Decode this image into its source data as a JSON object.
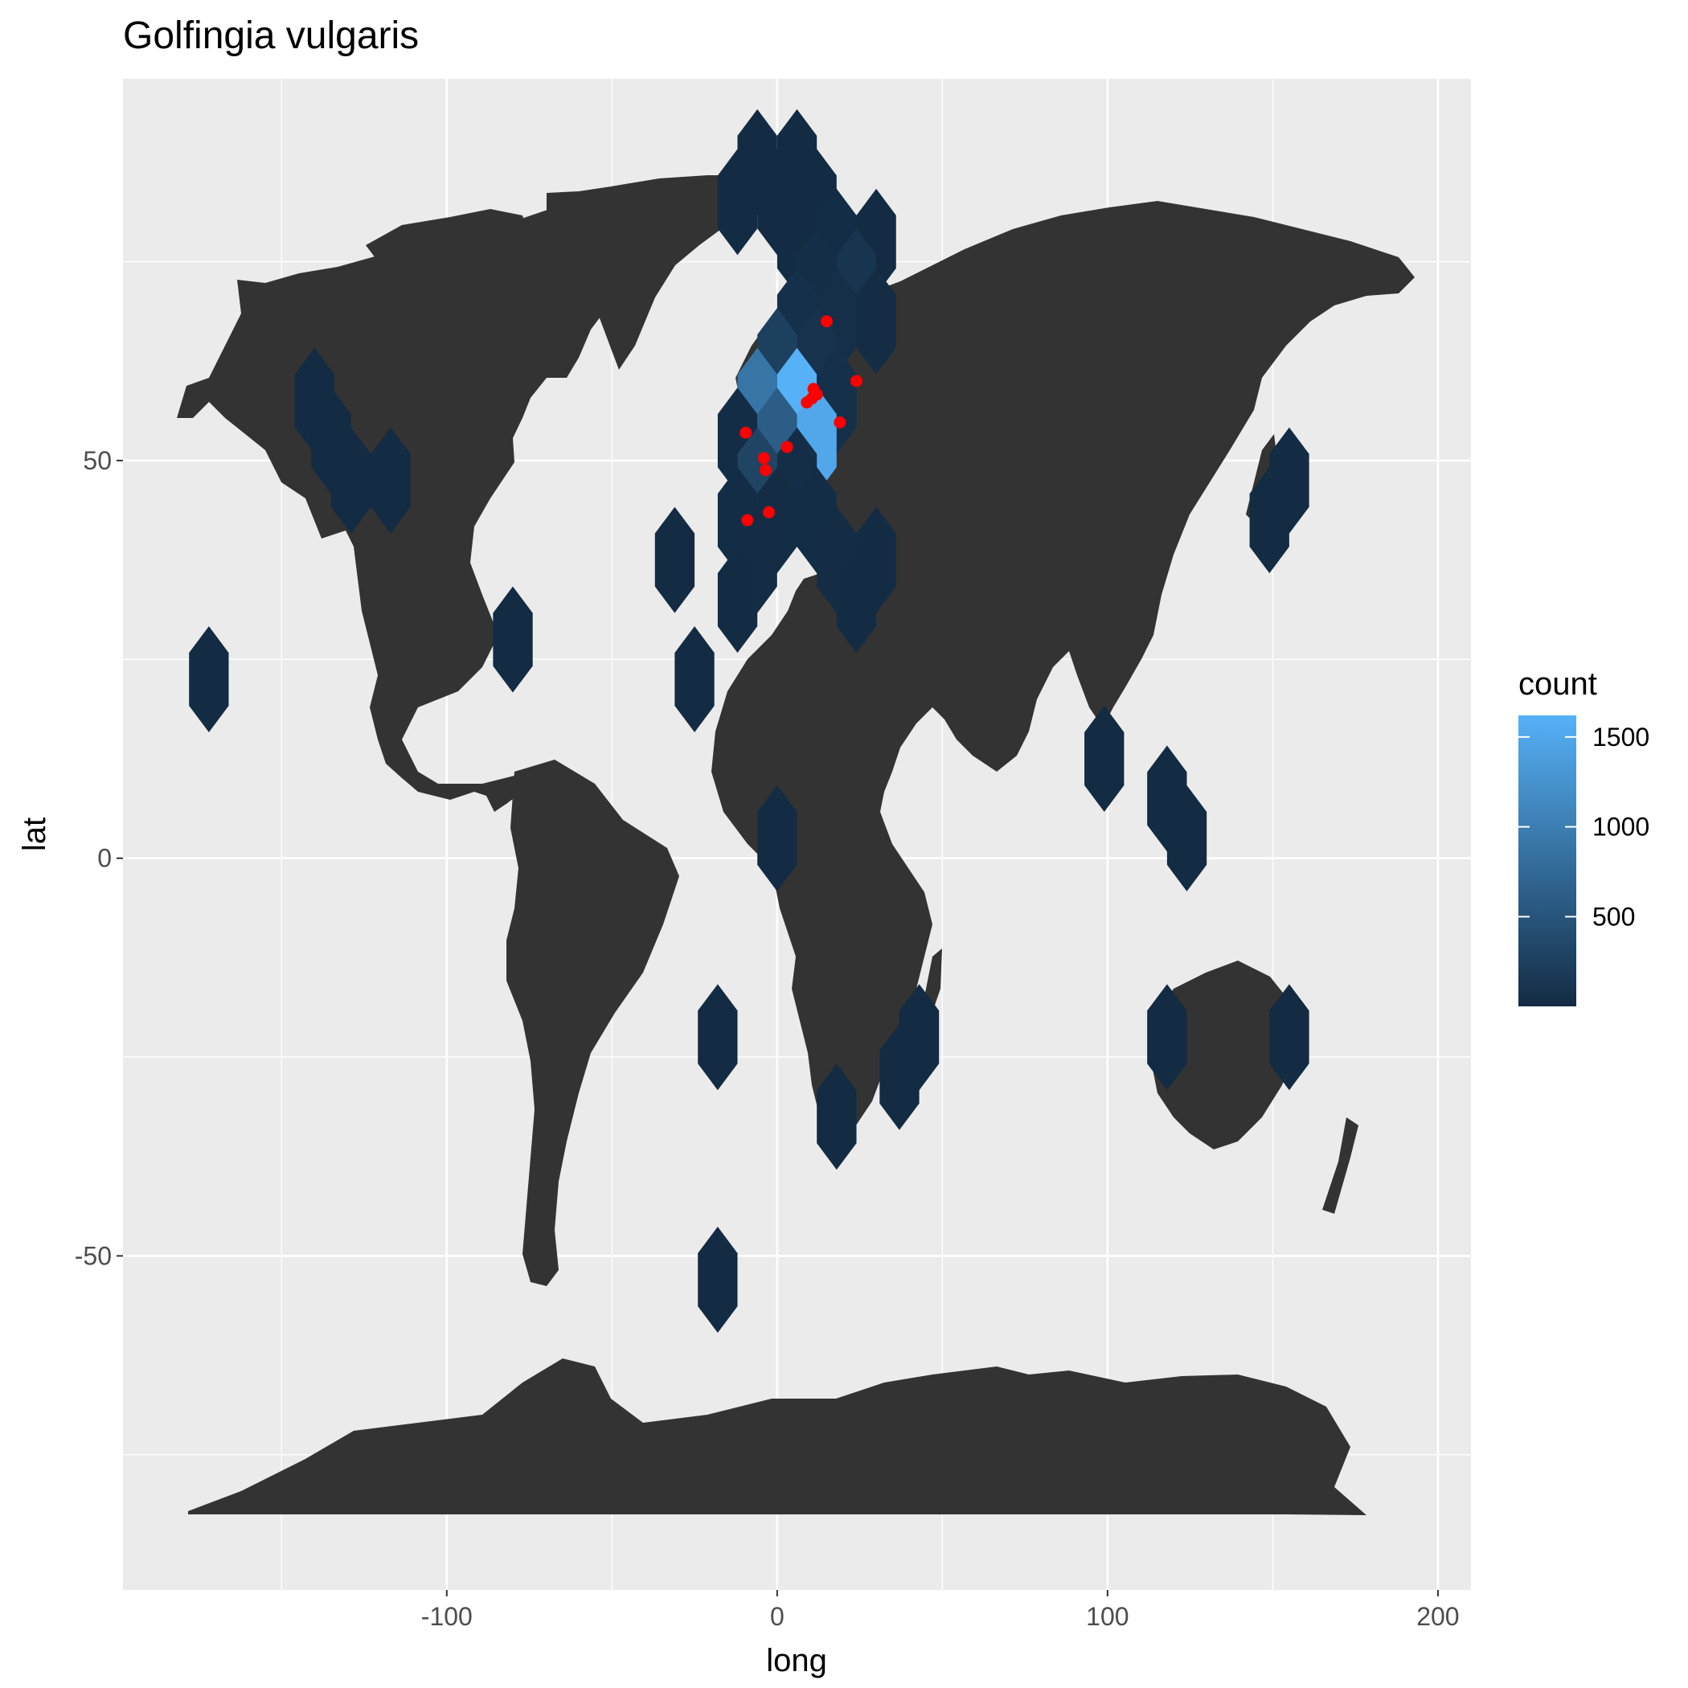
{
  "chart_data": {
    "type": "hexbin",
    "title": "Golfingia vulgaris",
    "xlabel": "long",
    "ylabel": "lat",
    "xlim": [
      -198,
      210
    ],
    "ylim": [
      -92,
      98
    ],
    "x_ticks": [
      -100,
      0,
      100,
      200
    ],
    "x_tick_labels": [
      "-100",
      "0",
      "100",
      "200"
    ],
    "y_ticks": [
      -50,
      0,
      50
    ],
    "y_tick_labels": [
      "-50",
      "0",
      "50"
    ],
    "grid": true,
    "legend": {
      "title": "count",
      "position": "right",
      "breaks": [
        500,
        1000,
        1500
      ],
      "break_labels": [
        "500",
        "1000",
        "1500"
      ],
      "range": [
        1,
        1620
      ],
      "low_color": "#132b43",
      "high_color": "#56b1f7"
    },
    "colors": {
      "panel_background": "#ebebeb",
      "gridline": "#ffffff",
      "land": "#333333",
      "occurrence_point": "#ff0000"
    },
    "hex_bins": [
      {
        "x": -6,
        "y": 87.5,
        "count": 5
      },
      {
        "x": 6,
        "y": 87.5,
        "count": 5
      },
      {
        "x": -12,
        "y": 82.5,
        "count": 5
      },
      {
        "x": 0,
        "y": 82.5,
        "count": 5
      },
      {
        "x": 12,
        "y": 82.5,
        "count": 5
      },
      {
        "x": 6,
        "y": 77.5,
        "count": 10
      },
      {
        "x": 18,
        "y": 77.5,
        "count": 30
      },
      {
        "x": 30,
        "y": 77.5,
        "count": 5
      },
      {
        "x": 12,
        "y": 72.5,
        "count": 40
      },
      {
        "x": 24,
        "y": 72.5,
        "count": 120
      },
      {
        "x": 6,
        "y": 67.5,
        "count": 60
      },
      {
        "x": 18,
        "y": 67.5,
        "count": 50
      },
      {
        "x": 30,
        "y": 67.5,
        "count": 20
      },
      {
        "x": 0,
        "y": 62.5,
        "count": 250
      },
      {
        "x": 12,
        "y": 62.5,
        "count": 80
      },
      {
        "x": -6,
        "y": 57.5,
        "count": 900
      },
      {
        "x": 6,
        "y": 57.5,
        "count": 1620
      },
      {
        "x": 18,
        "y": 57.5,
        "count": 60
      },
      {
        "x": -12,
        "y": 52.5,
        "count": 30
      },
      {
        "x": 0,
        "y": 52.5,
        "count": 600
      },
      {
        "x": 12,
        "y": 52.5,
        "count": 1500
      },
      {
        "x": -6,
        "y": 47.5,
        "count": 300
      },
      {
        "x": 6,
        "y": 47.5,
        "count": 40
      },
      {
        "x": -12,
        "y": 42.5,
        "count": 30
      },
      {
        "x": 0,
        "y": 42.5,
        "count": 20
      },
      {
        "x": 12,
        "y": 42.5,
        "count": 30
      },
      {
        "x": -6,
        "y": 37.5,
        "count": 20
      },
      {
        "x": 18,
        "y": 37.5,
        "count": 20
      },
      {
        "x": 30,
        "y": 37.5,
        "count": 10
      },
      {
        "x": -12,
        "y": 32.5,
        "count": 10
      },
      {
        "x": 24,
        "y": 32.5,
        "count": 10
      },
      {
        "x": -31,
        "y": 37.5,
        "count": 5
      },
      {
        "x": -25,
        "y": 22.5,
        "count": 5
      },
      {
        "x": -80,
        "y": 27.5,
        "count": 5
      },
      {
        "x": -172,
        "y": 22.5,
        "count": 5
      },
      {
        "x": -140,
        "y": 57.5,
        "count": 5
      },
      {
        "x": -135,
        "y": 52.5,
        "count": 5
      },
      {
        "x": -129,
        "y": 47.5,
        "count": 5
      },
      {
        "x": -117,
        "y": 47.5,
        "count": 5
      },
      {
        "x": 155,
        "y": 47.5,
        "count": 5
      },
      {
        "x": 149,
        "y": 42.5,
        "count": 5
      },
      {
        "x": 99,
        "y": 12.5,
        "count": 5
      },
      {
        "x": 118,
        "y": 7.5,
        "count": 5
      },
      {
        "x": 124,
        "y": 2.5,
        "count": 5
      },
      {
        "x": 0,
        "y": 2.5,
        "count": 5
      },
      {
        "x": -18,
        "y": -22.5,
        "count": 5
      },
      {
        "x": 43,
        "y": -22.5,
        "count": 5
      },
      {
        "x": 37,
        "y": -27.5,
        "count": 5
      },
      {
        "x": 18,
        "y": -32.5,
        "count": 5
      },
      {
        "x": 118,
        "y": -22.5,
        "count": 5
      },
      {
        "x": 155,
        "y": -22.5,
        "count": 5
      },
      {
        "x": -18,
        "y": -53,
        "count": 5
      }
    ],
    "occurrence_points": [
      {
        "x": 15,
        "y": 67.5
      },
      {
        "x": 24,
        "y": 60
      },
      {
        "x": 11,
        "y": 59
      },
      {
        "x": 12,
        "y": 58.3
      },
      {
        "x": 10.5,
        "y": 57.8
      },
      {
        "x": 9,
        "y": 57.3
      },
      {
        "x": 19,
        "y": 54.8
      },
      {
        "x": -9.5,
        "y": 53.5
      },
      {
        "x": 3,
        "y": 51.7
      },
      {
        "x": -4,
        "y": 50.3
      },
      {
        "x": -3.5,
        "y": 48.8
      },
      {
        "x": -2.5,
        "y": 43.5
      },
      {
        "x": -9,
        "y": 42.5
      }
    ]
  }
}
